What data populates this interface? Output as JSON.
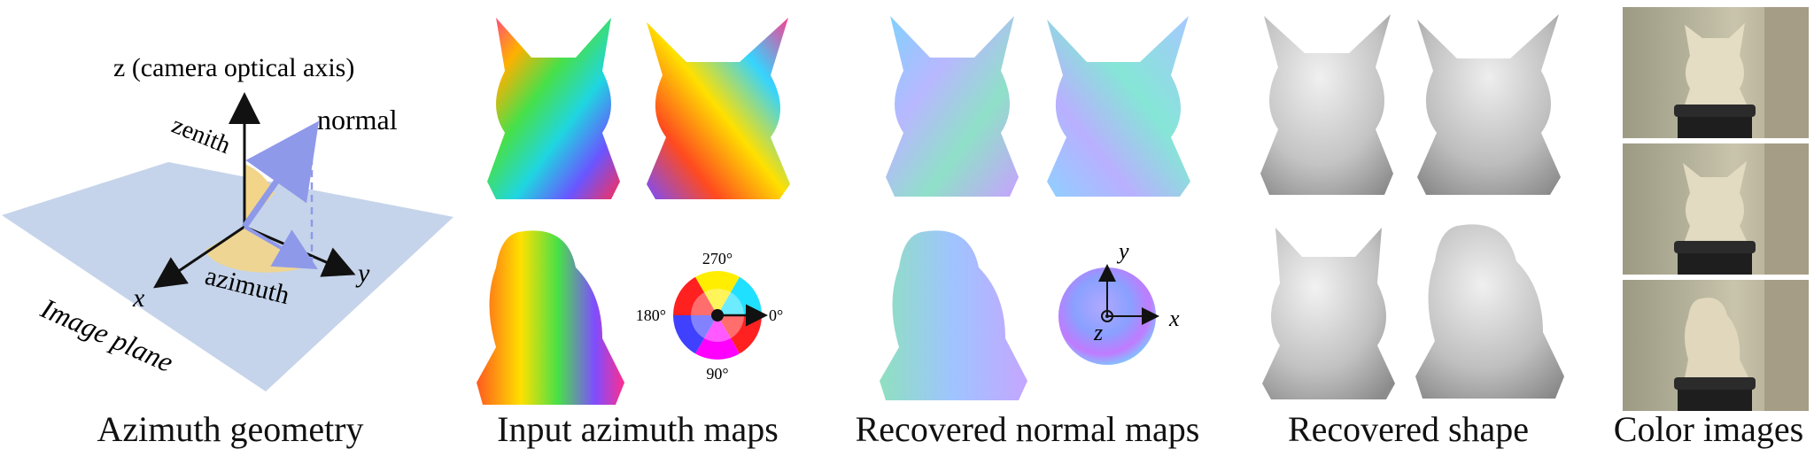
{
  "panels": {
    "geometry": {
      "caption": "Azimuth geometry",
      "z_axis_label": "z (camera optical axis)",
      "normal_label": "normal",
      "zenith_label": "zenith",
      "azimuth_label": "azimuth",
      "x_label": "x",
      "y_label": "y",
      "plane_label": "Image plane"
    },
    "azimuth_maps": {
      "caption": "Input azimuth maps",
      "wheel_labels": {
        "top": "270°",
        "left": "180°",
        "right": "0°",
        "bottom": "90°"
      }
    },
    "normal_maps": {
      "caption": "Recovered normal maps",
      "sphere_labels": {
        "y": "y",
        "x": "x",
        "z": "z"
      }
    },
    "shape": {
      "caption": "Recovered shape"
    },
    "color": {
      "caption": "Color images"
    }
  },
  "colors": {
    "plane": "#c5d4ea",
    "normal_arrow": "#9aa4ee",
    "zenith_arc": "#f3d589",
    "normal_map_tint": "#a9c8ff",
    "shape_gray": "#c8c8c8"
  }
}
